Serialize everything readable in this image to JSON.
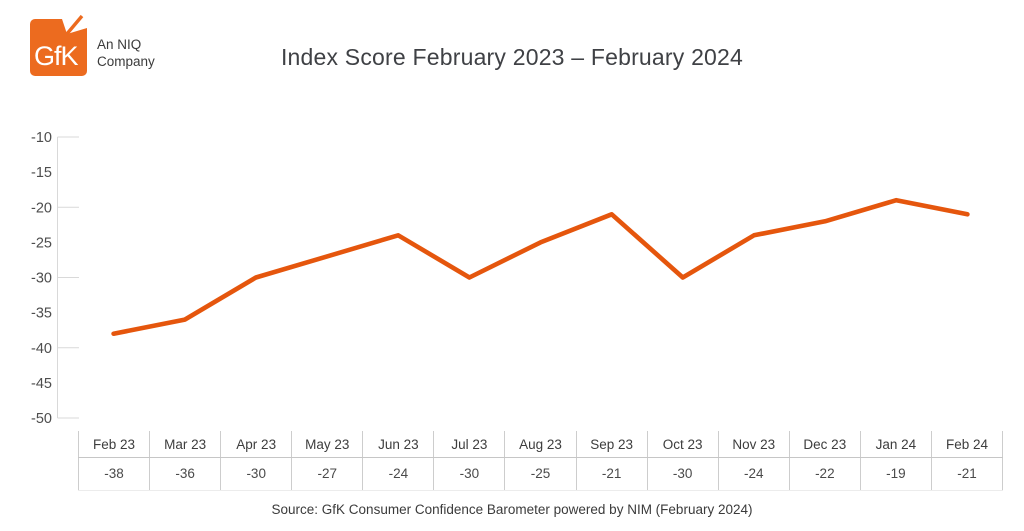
{
  "header": {
    "logo_text": "GfK",
    "logo_sub": "An NIQ Company",
    "title": "Index Score February 2023 – February 2024"
  },
  "chart_data": {
    "type": "line",
    "title": "Index Score February 2023 – February 2024",
    "categories": [
      "Feb 23",
      "Mar 23",
      "Apr 23",
      "May 23",
      "Jun 23",
      "Jul 23",
      "Aug 23",
      "Sep 23",
      "Oct 23",
      "Nov 23",
      "Dec 23",
      "Jan 24",
      "Feb 24"
    ],
    "values": [
      -38,
      -36,
      -30,
      -27,
      -24,
      -30,
      -25,
      -21,
      -30,
      -24,
      -22,
      -19,
      -21
    ],
    "xlabel": "",
    "ylabel": "",
    "ylim": [
      -50,
      -10
    ],
    "y_tick_labels": [
      -10,
      -15,
      -20,
      -25,
      -30,
      -35,
      -40,
      -45,
      -50
    ],
    "y_tick_marks": [
      -10,
      -20,
      -30,
      -40,
      -50
    ],
    "grid": false,
    "legend": "none",
    "line_color": "#e5560d",
    "axis_color": "#d9d9d9",
    "tick_label_color": "#4d4d4d"
  },
  "footer": {
    "source": "Source: GfK Consumer Confidence Barometer powered by NIM (February 2024)"
  },
  "colors": {
    "accent": "#e5560d",
    "logo_orange": "#ec6b1f",
    "text_dark": "#3f4145"
  }
}
